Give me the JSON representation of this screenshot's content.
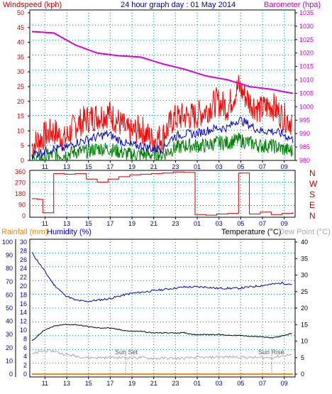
{
  "header": {
    "left": "Windspeed (kph)",
    "center": "24 hour graph day : 01 May 2014",
    "right": "Barometer (hpa)"
  },
  "bottom_header": {
    "rainfall": "Rainfall (mm)",
    "humidity": "Humidity (%)",
    "temperature": "Temperature (°C)",
    "dewpoint": "Dew Point (°C)"
  },
  "annotations": {
    "sunset": "Sun Set",
    "sunrise": "Sun Rise"
  },
  "colors": {
    "wind_gust": "#ff0000",
    "wind_avg": "#0000cc",
    "wind_low": "#008000",
    "barometer": "#dd00dd",
    "direction": "#cc0000",
    "humidity": "#0000cc",
    "temperature": "#000000",
    "dewpoint": "#aaaaaa",
    "rainfall": "#ff8800"
  },
  "chart_data": [
    {
      "type": "line",
      "xlabel": "",
      "x_ticks": [
        "11",
        "13",
        "15",
        "17",
        "19",
        "21",
        "23",
        "01",
        "03",
        "05",
        "07",
        "09"
      ],
      "left_axis": {
        "label": "Windspeed (kph)",
        "ylim": [
          0,
          50
        ],
        "ticks": [
          "0",
          "5",
          "10",
          "15",
          "20",
          "25",
          "30",
          "35",
          "40",
          "45",
          "50"
        ]
      },
      "right_axis": {
        "label": "Barometer (hpa)",
        "ylim": [
          980,
          1035
        ],
        "ticks": [
          "980",
          "985",
          "990",
          "995",
          "1000",
          "1005",
          "1010",
          "1015",
          "1020",
          "1025",
          "1030",
          "1035"
        ]
      },
      "series": [
        {
          "key": "gust",
          "axis": "left",
          "x": [
            0,
            1,
            2,
            3,
            4,
            5,
            6,
            7,
            8,
            9,
            10,
            11,
            12,
            13,
            14,
            15,
            16,
            17,
            18,
            19,
            20,
            21,
            22,
            23,
            24
          ],
          "values": [
            5,
            8,
            10,
            7,
            12,
            14,
            15,
            16,
            13,
            9,
            11,
            7,
            8,
            14,
            15,
            15,
            17,
            20,
            18,
            25,
            20,
            17,
            19,
            15,
            13
          ]
        },
        {
          "key": "avg",
          "axis": "left",
          "x": [
            0,
            1,
            2,
            3,
            4,
            5,
            6,
            7,
            8,
            9,
            10,
            11,
            12,
            13,
            14,
            15,
            16,
            17,
            18,
            19,
            20,
            21,
            22,
            23,
            24
          ],
          "values": [
            2,
            3,
            4,
            4,
            6,
            7,
            8,
            9,
            7,
            5,
            5,
            4,
            4,
            8,
            9,
            9,
            10,
            11,
            11,
            14,
            12,
            10,
            10,
            9,
            7
          ]
        },
        {
          "key": "low",
          "axis": "left",
          "x": [
            0,
            1,
            2,
            3,
            4,
            5,
            6,
            7,
            8,
            9,
            10,
            11,
            12,
            13,
            14,
            15,
            16,
            17,
            18,
            19,
            20,
            21,
            22,
            23,
            24
          ],
          "values": [
            0,
            1,
            2,
            2,
            3,
            3,
            4,
            4,
            3,
            2,
            2,
            2,
            2,
            4,
            5,
            5,
            5,
            6,
            6,
            7,
            6,
            5,
            5,
            4,
            3
          ]
        },
        {
          "key": "barometer",
          "axis": "right",
          "x": [
            0,
            2,
            4,
            6,
            8,
            10,
            12,
            14,
            16,
            18,
            20,
            22,
            24
          ],
          "values": [
            1028,
            1027.5,
            1023,
            1020,
            1019,
            1018.5,
            1016,
            1014,
            1011.5,
            1010,
            1007.5,
            1006.5,
            1005
          ]
        }
      ]
    },
    {
      "type": "line",
      "x_ticks": [
        "11",
        "13",
        "15",
        "17",
        "19",
        "21",
        "23",
        "01",
        "03",
        "05",
        "07",
        "09"
      ],
      "ylim": [
        0,
        360
      ],
      "y_ticks": [
        "0",
        "90",
        "180",
        "270",
        "360"
      ],
      "right_labels": [
        "N",
        "W",
        "S",
        "E",
        "N"
      ],
      "series": [
        {
          "key": "direction",
          "x": [
            0,
            0.5,
            1,
            2,
            3,
            4,
            5,
            6,
            7,
            8,
            9,
            10,
            11,
            12,
            13,
            14,
            15,
            16,
            17,
            18,
            19,
            20,
            21,
            22,
            23,
            24
          ],
          "values": [
            140,
            135,
            25,
            345,
            340,
            345,
            300,
            275,
            300,
            320,
            335,
            340,
            345,
            350,
            358,
            355,
            10,
            5,
            15,
            20,
            350,
            15,
            30,
            10,
            20,
            30
          ]
        }
      ]
    },
    {
      "type": "line",
      "x_ticks": [
        "11",
        "13",
        "15",
        "17",
        "19",
        "21",
        "23",
        "01",
        "03",
        "05",
        "07",
        "09"
      ],
      "left_axis_outer": {
        "label": "Rainfall (mm)",
        "ylim": [
          0,
          100
        ],
        "ticks": [
          "0",
          "10",
          "20",
          "30",
          "40",
          "50",
          "60",
          "70",
          "80",
          "90",
          "100"
        ]
      },
      "left_axis_inner": {
        "label": "Humidity (%)",
        "ylim": [
          0,
          30
        ],
        "ticks": [
          "0",
          "2",
          "4",
          "6",
          "8",
          "10",
          "12",
          "14",
          "16",
          "18",
          "20",
          "22",
          "24",
          "26",
          "28",
          "30"
        ]
      },
      "right_axis": {
        "label": "Temperature (°C)",
        "ylim": [
          0,
          40
        ],
        "ticks": [
          "0",
          "5",
          "10",
          "15",
          "20",
          "25",
          "30",
          "35",
          "40"
        ]
      },
      "series": [
        {
          "key": "humidity",
          "axis": "outer",
          "x": [
            0,
            1,
            2,
            3,
            4,
            5,
            6,
            7,
            8,
            9,
            10,
            11,
            12,
            13,
            14,
            15,
            16,
            17,
            18,
            19,
            20,
            21,
            22,
            23,
            24
          ],
          "values": [
            92,
            80,
            68,
            60,
            56,
            55,
            56,
            57,
            59,
            61,
            62,
            63,
            64,
            65,
            66,
            66,
            66,
            65,
            65,
            65,
            66,
            67,
            68,
            69,
            68
          ]
        },
        {
          "key": "temperature",
          "axis": "right",
          "x": [
            0,
            1,
            2,
            3,
            4,
            5,
            6,
            7,
            8,
            9,
            10,
            11,
            12,
            13,
            14,
            15,
            16,
            17,
            18,
            19,
            20,
            21,
            22,
            23,
            24
          ],
          "values": [
            10,
            13,
            14.5,
            15,
            15,
            14.5,
            14,
            14,
            13.5,
            13,
            13,
            12.5,
            12.5,
            12.5,
            12.5,
            12,
            12,
            12,
            11.8,
            11.7,
            11.5,
            11.3,
            11,
            11.5,
            12.5
          ]
        },
        {
          "key": "dewpoint",
          "axis": "right",
          "x": [
            0,
            1,
            2,
            3,
            4,
            5,
            6,
            7,
            8,
            9,
            10,
            11,
            12,
            13,
            14,
            15,
            16,
            17,
            18,
            19,
            20,
            21,
            22,
            23,
            24
          ],
          "values": [
            6,
            7,
            7,
            6,
            5.5,
            5,
            5,
            5,
            5,
            5,
            5,
            4.8,
            4.8,
            4.8,
            4.8,
            5,
            5,
            5.2,
            5.2,
            5.2,
            5,
            5,
            5,
            5.5,
            6
          ]
        },
        {
          "key": "rainfall",
          "axis": "outer",
          "x": [
            0,
            24
          ],
          "values": [
            0,
            0
          ]
        }
      ]
    }
  ]
}
